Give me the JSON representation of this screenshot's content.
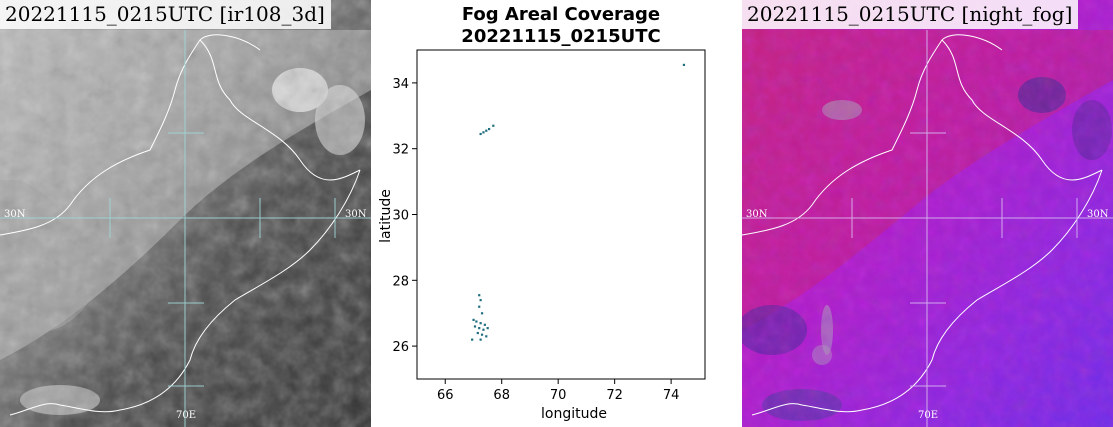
{
  "left_panel": {
    "title": "20221115_0215UTC [ir108_3d]",
    "grid_labels": {
      "lat_left": "30N",
      "lat_right": "30N",
      "lon_bottom": "70E"
    }
  },
  "right_panel": {
    "title": "20221115_0215UTC [night_fog]",
    "grid_labels": {
      "lat_left": "30N",
      "lat_right": "30N",
      "lon_bottom": "70E"
    }
  },
  "chart_data": {
    "type": "scatter",
    "title": "Fog Areal Coverage",
    "subtitle": "20221115_0215UTC",
    "xlabel": "longitude",
    "ylabel": "latitude",
    "xlim": [
      65,
      75.2
    ],
    "ylim": [
      25,
      35
    ],
    "xticks": [
      66,
      68,
      70,
      72,
      74
    ],
    "yticks": [
      26,
      28,
      30,
      32,
      34
    ],
    "color": "#1f6f7f",
    "points": [
      {
        "x": 74.45,
        "y": 34.55
      },
      {
        "x": 67.25,
        "y": 32.45
      },
      {
        "x": 67.35,
        "y": 32.5
      },
      {
        "x": 67.45,
        "y": 32.55
      },
      {
        "x": 67.55,
        "y": 32.6
      },
      {
        "x": 67.7,
        "y": 32.7
      },
      {
        "x": 67.2,
        "y": 27.55
      },
      {
        "x": 67.25,
        "y": 27.4
      },
      {
        "x": 67.2,
        "y": 27.2
      },
      {
        "x": 67.3,
        "y": 27.0
      },
      {
        "x": 67.0,
        "y": 26.8
      },
      {
        "x": 67.1,
        "y": 26.75
      },
      {
        "x": 67.25,
        "y": 26.7
      },
      {
        "x": 67.4,
        "y": 26.65
      },
      {
        "x": 67.05,
        "y": 26.6
      },
      {
        "x": 67.2,
        "y": 26.55
      },
      {
        "x": 67.35,
        "y": 26.5
      },
      {
        "x": 67.5,
        "y": 26.55
      },
      {
        "x": 67.15,
        "y": 26.4
      },
      {
        "x": 67.3,
        "y": 26.35
      },
      {
        "x": 67.45,
        "y": 26.3
      },
      {
        "x": 66.95,
        "y": 26.2
      },
      {
        "x": 67.25,
        "y": 26.2
      }
    ]
  }
}
